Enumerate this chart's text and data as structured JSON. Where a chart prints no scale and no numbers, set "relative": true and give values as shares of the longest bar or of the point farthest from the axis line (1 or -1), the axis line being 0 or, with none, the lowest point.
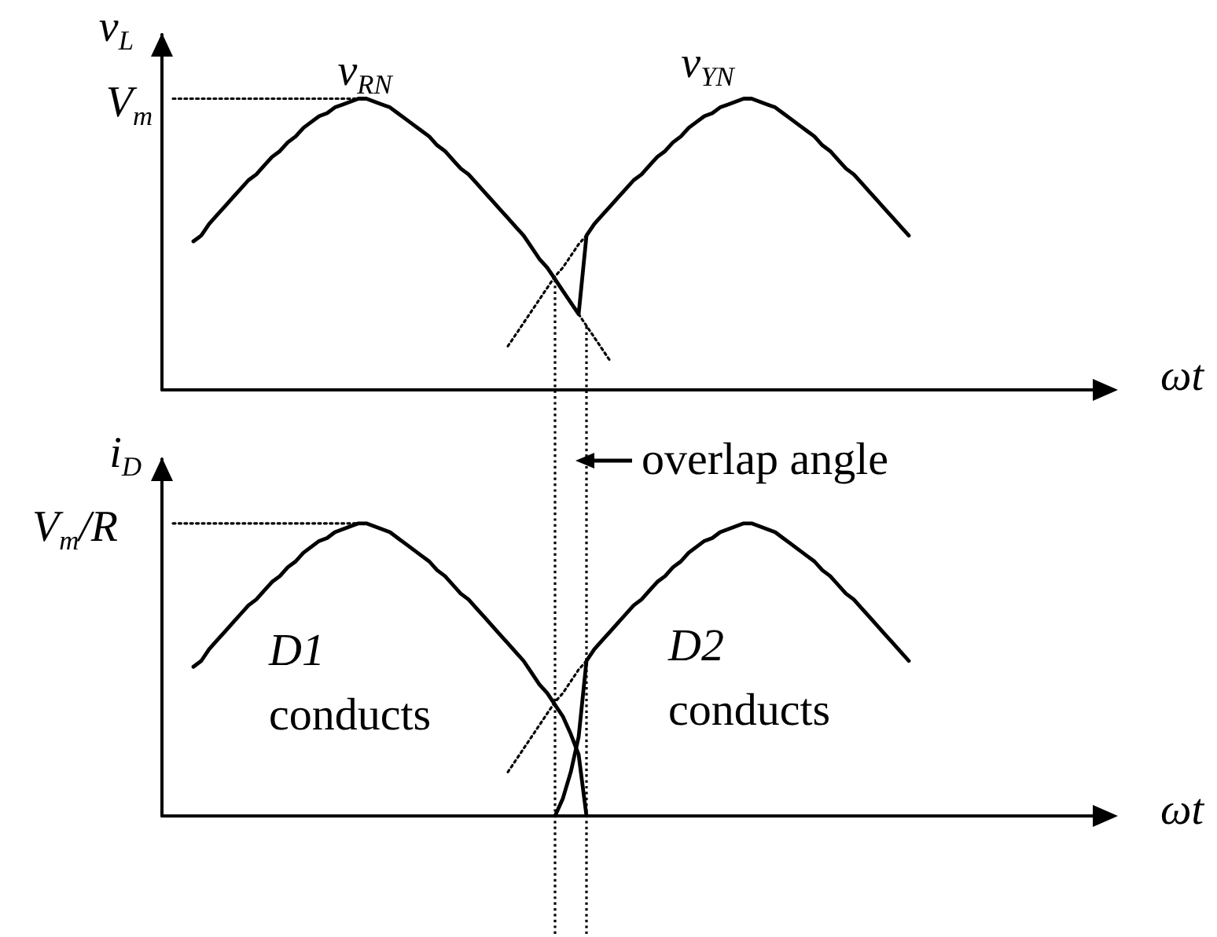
{
  "chart_data": [
    {
      "type": "line",
      "relative": true,
      "xlabel": "ωt",
      "ylabel": "v$_{L}$",
      "line_style": "solid",
      "categories": [
        null,
        null,
        null,
        null,
        null,
        null,
        null,
        null,
        null,
        null,
        null,
        null,
        null,
        null,
        null,
        null,
        null,
        null,
        null,
        null,
        null,
        null,
        null,
        null,
        null,
        null,
        null,
        null,
        null,
        null,
        null,
        null,
        null,
        null,
        null,
        null,
        null,
        null,
        null,
        null,
        null,
        null,
        null,
        null,
        null,
        null,
        null,
        null,
        null,
        null,
        null,
        null,
        null,
        null,
        null,
        null,
        null,
        null,
        null,
        null,
        null,
        null,
        null,
        null,
        null,
        null,
        null,
        null,
        null,
        null,
        null,
        null,
        null,
        null,
        null,
        null,
        null,
        null,
        null,
        null,
        null,
        null,
        null,
        null,
        null,
        null,
        null,
        null,
        null,
        null,
        null,
        null,
        null,
        null,
        null,
        null,
        null,
        null,
        null,
        null,
        null,
        null,
        null,
        null,
        null,
        null,
        null,
        null,
        null,
        null,
        null,
        null,
        null,
        null,
        null,
        null,
        null,
        null,
        null,
        null,
        null,
        null
      ],
      "series": [
        {
          "color": "#000000",
          "values": [
            null,
            null,
            null,
            null,
            0.51,
            0.53,
            0.57,
            0.6,
            0.63,
            0.66,
            0.69,
            0.72,
            0.74,
            0.77,
            0.8,
            0.82,
            0.85,
            0.87,
            0.9,
            0.92,
            0.94,
            0.95,
            0.97,
            0.98,
            0.99,
            1,
            1,
            0.99,
            0.98,
            0.97,
            0.95,
            0.93,
            0.91,
            0.89,
            0.87,
            0.84,
            0.82,
            0.79,
            0.76,
            0.74,
            0.71,
            0.68,
            0.65,
            0.62,
            0.59,
            0.56,
            0.53,
            0.49,
            0.45,
            0.42,
            0.38,
            0.34,
            0.3,
            0.26,
            0.53,
            0.57,
            0.6,
            0.63,
            0.66,
            0.69,
            0.72,
            0.74,
            0.77,
            0.8,
            0.82,
            0.85,
            0.87,
            0.9,
            0.92,
            0.94,
            0.95,
            0.97,
            0.98,
            0.99,
            1,
            1,
            0.99,
            0.98,
            0.97,
            0.95,
            0.93,
            0.91,
            0.89,
            0.87,
            0.84,
            0.82,
            0.79,
            0.76,
            0.74,
            0.71,
            0.68,
            0.65,
            0.62,
            0.59,
            0.56,
            0.53,
            null,
            null,
            null,
            null,
            null,
            null,
            null,
            null,
            null,
            null,
            null,
            null,
            null,
            null,
            null,
            null,
            null,
            null,
            null,
            null,
            null,
            null,
            null,
            null,
            null,
            null
          ]
        },
        {
          "color": "#000000",
          "line_style": "dotted",
          "values": [
            null,
            null,
            null,
            null,
            null,
            null,
            null,
            null,
            null,
            null,
            null,
            null,
            null,
            null,
            null,
            null,
            null,
            null,
            null,
            null,
            null,
            null,
            null,
            null,
            null,
            null,
            null,
            null,
            null,
            null,
            null,
            null,
            null,
            null,
            null,
            null,
            null,
            null,
            null,
            null,
            null,
            null,
            null,
            null,
            null,
            null,
            null,
            null,
            null,
            null,
            null,
            null,
            null,
            0.26,
            0.22,
            0.18,
            0.14,
            0.1,
            null,
            null,
            null,
            null,
            null,
            null,
            null,
            null,
            null,
            null,
            null,
            null,
            null,
            null,
            null,
            null,
            null,
            null,
            null,
            null,
            null,
            null,
            null,
            null,
            null,
            null,
            null,
            null,
            null,
            null,
            null,
            null,
            null,
            null,
            null,
            null,
            null,
            null,
            null,
            null,
            null,
            null,
            null,
            null,
            null,
            null,
            null,
            null,
            null,
            null,
            null,
            null,
            null,
            null,
            null,
            null,
            null,
            null,
            null,
            null,
            null,
            null,
            null,
            null
          ]
        },
        {
          "color": "#000000",
          "line_style": "dotted",
          "values": [
            null,
            null,
            null,
            null,
            null,
            null,
            null,
            null,
            null,
            null,
            null,
            null,
            null,
            null,
            null,
            null,
            null,
            null,
            null,
            null,
            null,
            null,
            null,
            null,
            null,
            null,
            null,
            null,
            null,
            null,
            null,
            null,
            null,
            null,
            null,
            null,
            null,
            null,
            null,
            null,
            null,
            null,
            null,
            null,
            0.15,
            0.19,
            0.23,
            0.27,
            0.31,
            0.35,
            0.39,
            0.42,
            0.46,
            0.5,
            0.53,
            null,
            null,
            null,
            null,
            null,
            null,
            null,
            null,
            null,
            null,
            null,
            null,
            null,
            null,
            null,
            null,
            null,
            null,
            null,
            null,
            null,
            null,
            null,
            null,
            null,
            null,
            null,
            null,
            null,
            null,
            null,
            null,
            null,
            null,
            null,
            null,
            null,
            null,
            null,
            null,
            null,
            null,
            null,
            null,
            null,
            null,
            null,
            null,
            null,
            null,
            null,
            null,
            null,
            null,
            null,
            null,
            null,
            null,
            null,
            null,
            null,
            null,
            null,
            null,
            null,
            null,
            null
          ]
        }
      ],
      "ref_lines": [
        {
          "axis": "y",
          "value": 1,
          "label": "V$_{m}$",
          "line_style": "dotted"
        }
      ],
      "annotations": [
        "v$_{RN}$",
        "v$_{YN}$"
      ]
    },
    {
      "type": "line",
      "relative": true,
      "xlabel": "ωt",
      "ylabel": "i$_{D}$",
      "line_style": "solid",
      "categories": [
        null,
        null,
        null,
        null,
        null,
        null,
        null,
        null,
        null,
        null,
        null,
        null,
        null,
        null,
        null,
        null,
        null,
        null,
        null,
        null,
        null,
        null,
        null,
        null,
        null,
        null,
        null,
        null,
        null,
        null,
        null,
        null,
        null,
        null,
        null,
        null,
        null,
        null,
        null,
        null,
        null,
        null,
        null,
        null,
        null,
        null,
        null,
        null,
        null,
        null,
        null,
        null,
        null,
        null,
        null,
        null,
        null,
        null,
        null,
        null,
        null,
        null,
        null,
        null,
        null,
        null,
        null,
        null,
        null,
        null,
        null,
        null,
        null,
        null,
        null,
        null,
        null,
        null,
        null,
        null,
        null,
        null,
        null,
        null,
        null,
        null,
        null,
        null,
        null,
        null,
        null,
        null,
        null,
        null,
        null,
        null,
        null,
        null,
        null,
        null,
        null,
        null,
        null,
        null,
        null,
        null,
        null,
        null,
        null,
        null,
        null,
        null,
        null,
        null,
        null,
        null,
        null,
        null,
        null,
        null,
        null,
        null
      ],
      "series": [
        {
          "color": "#000000",
          "values": [
            null,
            null,
            null,
            null,
            0.51,
            0.53,
            0.57,
            0.6,
            0.63,
            0.66,
            0.69,
            0.72,
            0.74,
            0.77,
            0.8,
            0.82,
            0.85,
            0.87,
            0.9,
            0.92,
            0.94,
            0.95,
            0.97,
            0.98,
            0.99,
            1,
            1,
            0.99,
            0.98,
            0.97,
            0.95,
            0.93,
            0.91,
            0.89,
            0.87,
            0.84,
            0.82,
            0.79,
            0.76,
            0.74,
            0.71,
            0.68,
            0.65,
            0.62,
            0.59,
            0.56,
            0.53,
            0.49,
            0.45,
            0.42,
            0.38,
            0.34,
            0.28,
            0.21,
            0,
            null,
            null,
            null,
            null,
            null,
            null,
            null,
            null,
            null,
            null,
            null,
            null,
            null,
            null,
            null,
            null,
            null,
            null,
            null,
            null,
            null,
            null,
            null,
            null,
            null,
            null,
            null,
            null,
            null,
            null,
            null,
            null,
            null,
            null,
            null,
            null,
            null,
            null,
            null,
            null,
            null,
            null,
            null,
            null,
            null,
            null,
            null,
            null,
            null,
            null,
            null,
            null,
            null,
            null,
            null,
            null,
            null,
            null,
            null,
            null,
            null,
            null,
            null,
            null,
            null,
            null,
            null
          ]
        },
        {
          "color": "#000000",
          "values": [
            null,
            null,
            null,
            null,
            null,
            null,
            null,
            null,
            null,
            null,
            null,
            null,
            null,
            null,
            null,
            null,
            null,
            null,
            null,
            null,
            null,
            null,
            null,
            null,
            null,
            null,
            null,
            null,
            null,
            null,
            null,
            null,
            null,
            null,
            null,
            null,
            null,
            null,
            null,
            null,
            null,
            null,
            null,
            null,
            null,
            null,
            null,
            null,
            null,
            null,
            0,
            0.06,
            0.15,
            0.27,
            0.53,
            0.57,
            0.6,
            0.63,
            0.66,
            0.69,
            0.72,
            0.74,
            0.77,
            0.8,
            0.82,
            0.85,
            0.87,
            0.9,
            0.92,
            0.94,
            0.95,
            0.97,
            0.98,
            0.99,
            1,
            1,
            0.99,
            0.98,
            0.97,
            0.95,
            0.93,
            0.91,
            0.89,
            0.87,
            0.84,
            0.82,
            0.79,
            0.76,
            0.74,
            0.71,
            0.68,
            0.65,
            0.62,
            0.59,
            0.56,
            0.53,
            null,
            null,
            null,
            null,
            null,
            null,
            null,
            null,
            null,
            null,
            null,
            null,
            null,
            null,
            null,
            null,
            null,
            null,
            null,
            null,
            null,
            null,
            null,
            null,
            null,
            null
          ]
        },
        {
          "color": "#000000",
          "line_style": "dotted",
          "values": [
            null,
            null,
            null,
            null,
            null,
            null,
            null,
            null,
            null,
            null,
            null,
            null,
            null,
            null,
            null,
            null,
            null,
            null,
            null,
            null,
            null,
            null,
            null,
            null,
            null,
            null,
            null,
            null,
            null,
            null,
            null,
            null,
            null,
            null,
            null,
            null,
            null,
            null,
            null,
            null,
            null,
            null,
            null,
            null,
            0.15,
            0.19,
            0.23,
            0.27,
            0.31,
            0.35,
            0.39,
            0.42,
            0.46,
            0.5,
            0.53,
            null,
            null,
            null,
            null,
            null,
            null,
            null,
            null,
            null,
            null,
            null,
            null,
            null,
            null,
            null,
            null,
            null,
            null,
            null,
            null,
            null,
            null,
            null,
            null,
            null,
            null,
            null,
            null,
            null,
            null,
            null,
            null,
            null,
            null,
            null,
            null,
            null,
            null,
            null,
            null,
            null,
            null,
            null,
            null,
            null,
            null,
            null,
            null,
            null,
            null,
            null,
            null,
            null,
            null,
            null,
            null,
            null,
            null,
            null,
            null,
            null,
            null,
            null,
            null,
            null,
            null,
            null
          ]
        }
      ],
      "ref_lines": [
        {
          "axis": "y",
          "value": 1,
          "label": "V$_{m}$/R",
          "line_style": "dotted"
        }
      ],
      "annotations": [
        "D1 conducts",
        "D2 conducts",
        "overlap angle"
      ]
    }
  ]
}
